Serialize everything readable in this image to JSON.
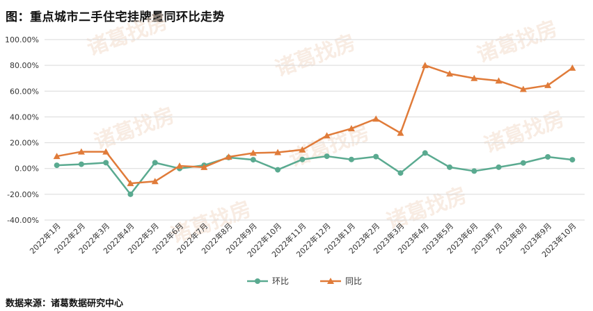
{
  "header": {
    "title": "图：重点城市二手住宅挂牌量同环比走势"
  },
  "footer": {
    "source": "数据来源：诸葛数据研究中心"
  },
  "watermark": "诸葛找房",
  "colors": {
    "huanbi": "#5aaa90",
    "tongbi": "#e07b39",
    "grid": "#d9d9d9",
    "axis": "#bfbfbf"
  },
  "chart_data": {
    "type": "line",
    "title": "图：重点城市二手住宅挂牌量同环比走势",
    "xlabel": "",
    "ylabel": "",
    "ylim": [
      -40,
      100
    ],
    "yticks": [
      100,
      80,
      60,
      40,
      20,
      0,
      -20,
      -40
    ],
    "ytick_labels": [
      "100.00%",
      "80.00%",
      "60.00%",
      "40.00%",
      "20.00%",
      "0.00%",
      "-20.00%",
      "-40.00%"
    ],
    "grid": true,
    "legend_position": "bottom",
    "categories": [
      "2022年1月",
      "2022年2月",
      "2022年3月",
      "2022年4月",
      "2022年5月",
      "2022年6月",
      "2022年7月",
      "2022年8月",
      "2022年9月",
      "2022年10月",
      "2022年11月",
      "2022年12月",
      "2023年1月",
      "2023年2月",
      "2023年3月",
      "2023年4月",
      "2023年5月",
      "2023年6月",
      "2023年7月",
      "2023年8月",
      "2023年9月",
      "2023年10月"
    ],
    "series": [
      {
        "name": "环比",
        "marker": "circle",
        "color": "#5aaa90",
        "values": [
          2.5,
          3.3,
          4.5,
          -20.0,
          4.5,
          0.0,
          2.5,
          8.5,
          6.8,
          -1.0,
          7.0,
          9.5,
          7.0,
          9.2,
          -3.5,
          12.0,
          1.0,
          -2.0,
          1.0,
          4.3,
          9.0,
          6.8
        ]
      },
      {
        "name": "同比",
        "marker": "triangle",
        "color": "#e07b39",
        "values": [
          9.5,
          13.0,
          13.0,
          -11.5,
          -10.0,
          2.0,
          1.0,
          9.0,
          12.0,
          12.5,
          14.5,
          25.5,
          31.0,
          38.5,
          27.5,
          80.0,
          73.5,
          70.0,
          68.0,
          61.5,
          64.5,
          78.0
        ]
      }
    ]
  }
}
